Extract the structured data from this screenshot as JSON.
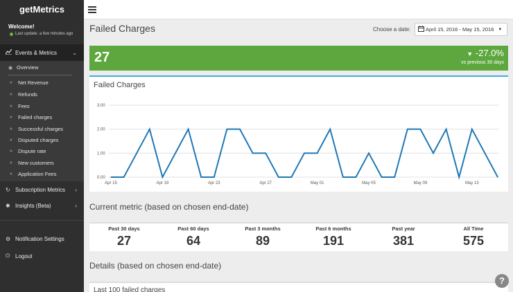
{
  "sidebar": {
    "brand": "getMetrics",
    "welcome": "Welcome!",
    "last_update": "Last update: a few minutes ago",
    "events_metrics": "Events & Metrics",
    "overview": "Overview",
    "items": [
      "Net Revenue",
      "Refunds",
      "Fees",
      "Failed charges",
      "Successful charges",
      "Disputed charges",
      "Dispute rate",
      "New customers",
      "Application Fees"
    ],
    "subscription_metrics": "Subscription Metrics",
    "insights": "Insights (Beta)",
    "notification_settings": "Notification Settings",
    "logout": "Logout"
  },
  "header": {
    "title": "Failed Charges",
    "date_label": "Choose a date:",
    "date_range": "April 15, 2016 - May 15, 2016"
  },
  "kpi": {
    "value": "27",
    "change": "-27.0%",
    "comparison": "vs previous 30 days",
    "color": "#5ea73f"
  },
  "chart_data": {
    "type": "line",
    "title": "Failed Charges",
    "x": [
      "Apr 15",
      "Apr 16",
      "Apr 17",
      "Apr 18",
      "Apr 19",
      "Apr 20",
      "Apr 21",
      "Apr 22",
      "Apr 23",
      "Apr 24",
      "Apr 25",
      "Apr 26",
      "Apr 27",
      "Apr 28",
      "Apr 29",
      "Apr 30",
      "May 01",
      "May 02",
      "May 03",
      "May 04",
      "May 05",
      "May 06",
      "May 07",
      "May 08",
      "May 09",
      "May 10",
      "May 11",
      "May 12",
      "May 13",
      "May 14",
      "May 15"
    ],
    "x_tick_labels": [
      "Apr 15",
      "Apr 19",
      "Apr 23",
      "Apr 27",
      "May 01",
      "May 05",
      "May 09",
      "May 13"
    ],
    "series": [
      {
        "values": [
          0,
          0,
          1,
          2,
          0,
          1,
          2,
          0,
          0,
          2,
          2,
          1,
          1,
          0,
          0,
          1,
          1,
          2,
          0,
          0,
          1,
          0,
          0,
          2,
          2,
          1,
          2,
          0,
          2,
          1,
          0
        ]
      }
    ],
    "ylim": [
      0,
      3
    ],
    "y_ticks": [
      "0.00",
      "1.00",
      "2.00",
      "3.00"
    ],
    "grid": true,
    "line_color": "#1f77b4"
  },
  "current_metric": {
    "heading": "Current metric (based on chosen end-date)",
    "metrics": [
      {
        "label": "Past 30 days",
        "value": "27"
      },
      {
        "label": "Past 60 days",
        "value": "64"
      },
      {
        "label": "Past 3 months",
        "value": "89"
      },
      {
        "label": "Past 6 months",
        "value": "191"
      },
      {
        "label": "Past year",
        "value": "381"
      },
      {
        "label": "All Time",
        "value": "575"
      }
    ]
  },
  "details": {
    "heading": "Details (based on chosen end-date)",
    "panel_title": "Last 100 failed charges"
  },
  "help": "?"
}
